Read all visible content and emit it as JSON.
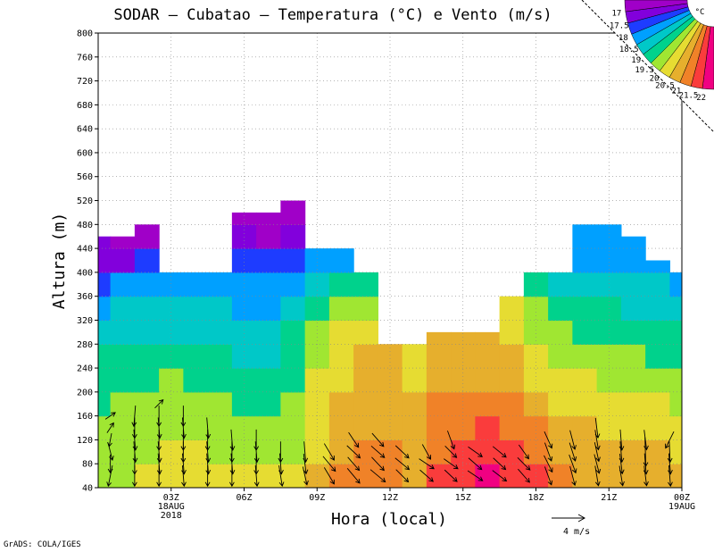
{
  "chart_data": {
    "type": "heatmap",
    "title": "SODAR — Cubatao — Temperatura (°C) e Vento (m/s)",
    "xlabel": "Hora (local)",
    "ylabel": "Altura (m)",
    "ylim": [
      40,
      800
    ],
    "xlim": [
      0,
      24
    ],
    "x_ticks": [
      {
        "x": 3,
        "label": "03Z",
        "sub1": "18AUG",
        "sub2": "2018"
      },
      {
        "x": 6,
        "label": "06Z",
        "sub1": "",
        "sub2": ""
      },
      {
        "x": 9,
        "label": "09Z",
        "sub1": "",
        "sub2": ""
      },
      {
        "x": 12,
        "label": "12Z",
        "sub1": "",
        "sub2": ""
      },
      {
        "x": 15,
        "label": "15Z",
        "sub1": "",
        "sub2": ""
      },
      {
        "x": 18,
        "label": "18Z",
        "sub1": "",
        "sub2": ""
      },
      {
        "x": 21,
        "label": "21Z",
        "sub1": "",
        "sub2": ""
      },
      {
        "x": 24,
        "label": "00Z",
        "sub1": "19AUG",
        "sub2": ""
      }
    ],
    "y_ticks": [
      40,
      80,
      120,
      160,
      200,
      240,
      280,
      320,
      360,
      400,
      440,
      480,
      520,
      560,
      600,
      640,
      680,
      720,
      760,
      800
    ],
    "grid": true,
    "legend": "top-right",
    "colorbar": {
      "unit": "°C",
      "levels": [
        "17",
        "17.5",
        "18",
        "18.5",
        "19",
        "19.5",
        "20",
        "20.5",
        "21",
        "21.5",
        "22"
      ],
      "colors": [
        "#a000c8",
        "#8200dc",
        "#1e3cff",
        "#00a0ff",
        "#00c8c8",
        "#00d28c",
        "#a0e632",
        "#e6dc32",
        "#e6af2d",
        "#f08228",
        "#fa3c3c",
        "#f00082"
      ]
    },
    "columns": [
      {
        "x": 0.0,
        "top": 460,
        "v": [
          19.8,
          19.6,
          19.5,
          19.4,
          19.2,
          19.0,
          18.8,
          18.4,
          17.9,
          17.4,
          17.0,
          16.9
        ]
      },
      {
        "x": 1.0,
        "top": 460,
        "v": [
          19.9,
          19.7,
          19.6,
          19.5,
          19.3,
          19.1,
          18.9,
          18.5,
          18.0,
          17.4,
          16.8,
          16.7
        ]
      },
      {
        "x": 2.0,
        "top": 480,
        "v": [
          20.0,
          19.9,
          19.7,
          19.6,
          19.4,
          19.1,
          18.9,
          18.6,
          18.1,
          17.6,
          16.9,
          16.7,
          16.6
        ]
      },
      {
        "x": 3.0,
        "top": 400,
        "v": [
          20.1,
          20.0,
          19.9,
          19.7,
          19.5,
          19.2,
          18.9,
          18.6,
          18.1,
          17.5,
          16.9
        ]
      },
      {
        "x": 4.0,
        "top": 400,
        "v": [
          20.2,
          20.0,
          19.8,
          19.6,
          19.4,
          19.2,
          18.9,
          18.6,
          18.1,
          17.6,
          17.0
        ]
      },
      {
        "x": 5.0,
        "top": 400,
        "v": [
          20.1,
          19.9,
          19.7,
          19.5,
          19.3,
          19.1,
          18.8,
          18.5,
          18.1,
          17.7,
          17.2
        ]
      },
      {
        "x": 6.0,
        "top": 500,
        "v": [
          20.1,
          19.9,
          19.6,
          19.4,
          19.2,
          18.9,
          18.6,
          18.4,
          18.0,
          17.6,
          17.0,
          16.6,
          16.4,
          16.3
        ]
      },
      {
        "x": 7.0,
        "top": 500,
        "v": [
          20.0,
          19.8,
          19.5,
          19.3,
          19.0,
          18.8,
          18.7,
          18.4,
          18.1,
          17.5,
          16.8,
          16.5,
          16.4,
          16.3
        ]
      },
      {
        "x": 8.0,
        "top": 520,
        "v": [
          20.0,
          19.7,
          19.5,
          19.5,
          19.4,
          19.3,
          19.0,
          18.7,
          18.3,
          17.8,
          17.3,
          16.9,
          16.7,
          16.6,
          16.5
        ]
      },
      {
        "x": 9.0,
        "top": 440,
        "v": [
          20.5,
          20.3,
          20.2,
          20.1,
          20.0,
          19.8,
          19.5,
          19.1,
          18.6,
          18.1,
          17.6,
          17.2
        ]
      },
      {
        "x": 10.0,
        "top": 440,
        "v": [
          21.0,
          20.8,
          20.6,
          20.5,
          20.4,
          20.3,
          20.0,
          19.5,
          19.0,
          18.4,
          18.0,
          17.6
        ]
      },
      {
        "x": 11.0,
        "top": 400,
        "v": [
          21.3,
          21.1,
          20.9,
          20.8,
          20.7,
          20.5,
          20.2,
          19.8,
          19.3,
          18.8,
          18.4
        ]
      },
      {
        "x": 12.0,
        "top": 280,
        "v": [
          21.2,
          21.0,
          20.9,
          20.8,
          20.7,
          20.6,
          20.5,
          20.4
        ]
      },
      {
        "x": 13.0,
        "top": 280,
        "v": [
          20.9,
          20.8,
          20.6,
          20.5,
          20.4,
          20.3,
          20.3,
          20.2
        ]
      },
      {
        "x": 14.0,
        "top": 300,
        "v": [
          21.5,
          21.3,
          21.1,
          21.0,
          20.9,
          20.8,
          20.6,
          20.5,
          20.4
        ]
      },
      {
        "x": 15.0,
        "top": 300,
        "v": [
          21.8,
          21.6,
          21.4,
          21.1,
          20.9,
          20.8,
          20.6,
          20.4,
          20.3
        ]
      },
      {
        "x": 16.0,
        "top": 300,
        "v": [
          22.1,
          21.8,
          21.5,
          21.2,
          20.9,
          20.7,
          20.5,
          20.3,
          20.2
        ]
      },
      {
        "x": 17.0,
        "top": 360,
        "v": [
          21.9,
          21.7,
          21.4,
          21.1,
          20.8,
          20.6,
          20.3,
          20.0,
          19.8,
          19.5
        ]
      },
      {
        "x": 18.0,
        "top": 400,
        "v": [
          21.5,
          21.3,
          21.0,
          20.7,
          20.4,
          20.1,
          19.8,
          19.5,
          19.2,
          18.8,
          18.5
        ]
      },
      {
        "x": 19.0,
        "top": 400,
        "v": [
          21.1,
          20.9,
          20.6,
          20.4,
          20.1,
          19.8,
          19.5,
          19.2,
          18.9,
          18.6,
          18.3
        ]
      },
      {
        "x": 20.0,
        "top": 480,
        "v": [
          20.9,
          20.7,
          20.5,
          20.2,
          20.0,
          19.7,
          19.4,
          19.1,
          18.8,
          18.4,
          18.0,
          17.6,
          17.2
        ]
      },
      {
        "x": 21.0,
        "top": 480,
        "v": [
          20.8,
          20.6,
          20.4,
          20.2,
          19.9,
          19.6,
          19.3,
          19.0,
          18.7,
          18.4,
          18.1,
          17.8,
          17.4
        ]
      },
      {
        "x": 22.0,
        "top": 460,
        "v": [
          20.7,
          20.5,
          20.3,
          20.1,
          19.8,
          19.5,
          19.2,
          18.9,
          18.6,
          18.3,
          18.0,
          17.7
        ]
      },
      {
        "x": 23.0,
        "top": 420,
        "v": [
          20.7,
          20.5,
          20.3,
          20.0,
          19.7,
          19.4,
          19.1,
          18.8,
          18.5,
          18.2,
          17.8
        ]
      },
      {
        "x": 24.0,
        "top": 400,
        "v": [
          20.6,
          20.4,
          20.2,
          19.9,
          19.6,
          19.3,
          19.0,
          18.7,
          18.4,
          18.0,
          17.7
        ]
      }
    ],
    "wind": [
      {
        "x": 0.5,
        "u": [
          -0.5,
          0,
          0.5,
          -0.3,
          0.8,
          1.2
        ],
        "v": [
          -2.5,
          -2.2,
          -2.0,
          -1.6,
          1.2,
          0.8
        ]
      },
      {
        "x": 1.5,
        "u": [
          0,
          0,
          0.2,
          0.2,
          0,
          -0.2
        ],
        "v": [
          -2.5,
          -2.5,
          -2.5,
          -2.5,
          -2.5,
          -2.5
        ]
      },
      {
        "x": 2.5,
        "u": [
          0,
          0.2,
          0.2,
          0,
          0.2,
          0,
          1.0
        ],
        "v": [
          -2.5,
          -2.5,
          -2.5,
          -2.5,
          -2.5,
          -2.5,
          1.0
        ]
      },
      {
        "x": 3.5,
        "u": [
          0.2,
          0.2,
          0,
          0,
          0.2,
          0
        ],
        "v": [
          -2.5,
          -2.5,
          -2.5,
          -2.5,
          -2.5,
          -2.5
        ]
      },
      {
        "x": 4.5,
        "u": [
          0,
          0.2,
          0.2,
          0,
          0.2
        ],
        "v": [
          -2.5,
          -2.5,
          -2.5,
          -2.5,
          -2.5
        ]
      },
      {
        "x": 5.5,
        "u": [
          0,
          0.2,
          0,
          0.2
        ],
        "v": [
          -2.5,
          -2.5,
          -2.5,
          -2.5
        ]
      },
      {
        "x": 6.5,
        "u": [
          0.2,
          0,
          0.2,
          0
        ],
        "v": [
          -2.5,
          -2.5,
          -2.5,
          -2.5
        ]
      },
      {
        "x": 7.5,
        "u": [
          0.4,
          0.2,
          0
        ],
        "v": [
          -2.5,
          -2.5,
          -2.5
        ]
      },
      {
        "x": 8.5,
        "u": [
          0.5,
          0.3,
          0.2
        ],
        "v": [
          -2.2,
          -2.4,
          -2.5
        ]
      },
      {
        "x": 9.5,
        "u": [
          1.2,
          1.5,
          1.2
        ],
        "v": [
          -2.0,
          -1.8,
          -2.0
        ]
      },
      {
        "x": 10.5,
        "u": [
          1.5,
          1.4,
          1.6,
          1.2
        ],
        "v": [
          -1.8,
          -1.6,
          -1.5,
          -1.8
        ]
      },
      {
        "x": 11.5,
        "u": [
          1.8,
          1.5,
          1.6,
          1.4
        ],
        "v": [
          -1.5,
          -1.6,
          -1.4,
          -1.6
        ]
      },
      {
        "x": 12.5,
        "u": [
          1.5,
          1.7,
          1.6
        ],
        "v": [
          -1.5,
          -1.4,
          -1.5
        ]
      },
      {
        "x": 13.5,
        "u": [
          1.6,
          1.8,
          1.0
        ],
        "v": [
          -1.4,
          -1.2,
          -1.8
        ]
      },
      {
        "x": 14.5,
        "u": [
          1.5,
          1.7,
          1.4,
          0.8
        ],
        "v": [
          -1.4,
          -1.2,
          -1.4,
          -2.2
        ]
      },
      {
        "x": 15.5,
        "u": [
          1.8,
          1.6,
          1.7
        ],
        "v": [
          -1.2,
          -1.4,
          -1.2
        ]
      },
      {
        "x": 16.5,
        "u": [
          1.7,
          1.5,
          1.6
        ],
        "v": [
          -1.3,
          -1.4,
          -1.3
        ]
      },
      {
        "x": 17.5,
        "u": [
          1.4,
          1.5,
          1.2
        ],
        "v": [
          -1.6,
          -1.5,
          -1.7
        ]
      },
      {
        "x": 18.5,
        "u": [
          0.8,
          1.0,
          0.8,
          0.9
        ],
        "v": [
          -2.2,
          -2.0,
          -2.2,
          -2.0
        ]
      },
      {
        "x": 19.5,
        "u": [
          0.6,
          0.8,
          0.7,
          0.6
        ],
        "v": [
          -2.3,
          -2.2,
          -2.2,
          -2.3
        ]
      },
      {
        "x": 20.5,
        "u": [
          0.4,
          0.6,
          0.5,
          0.4,
          0.3
        ],
        "v": [
          -2.4,
          -2.3,
          -2.3,
          -2.4,
          -2.4
        ]
      },
      {
        "x": 21.5,
        "u": [
          0.4,
          0.3,
          0.2,
          0.2
        ],
        "v": [
          -2.4,
          -2.4,
          -2.5,
          -2.5
        ]
      },
      {
        "x": 22.5,
        "u": [
          0.3,
          0.2,
          0.1,
          0.3
        ],
        "v": [
          -2.4,
          -2.5,
          -3.5,
          -2.4
        ]
      },
      {
        "x": 23.5,
        "u": [
          0.2,
          0.2,
          0.1,
          -1.0
        ],
        "v": [
          -2.5,
          -2.5,
          -2.5,
          -2.0
        ]
      }
    ],
    "wind_reference": {
      "value": 4,
      "label": "4  m/s"
    },
    "credit": "GrADS: COLA/IGES"
  }
}
